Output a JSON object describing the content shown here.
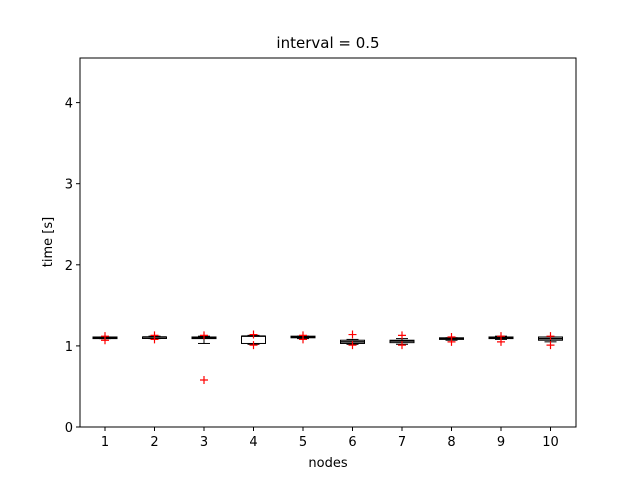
{
  "chart_data": {
    "type": "box",
    "title": "interval = 0.5",
    "xlabel": "nodes",
    "ylabel": "time [s]",
    "categories": [
      "1",
      "2",
      "3",
      "4",
      "5",
      "6",
      "7",
      "8",
      "9",
      "10"
    ],
    "yticks": [
      "0",
      "1",
      "2",
      "3",
      "4"
    ],
    "ylim": [
      0,
      4.55
    ],
    "grid": false,
    "colors": {
      "box": "#000000",
      "median": "#000000",
      "outlier": "#ff0000"
    },
    "series": [
      {
        "category": "1",
        "whisker_low": 1.09,
        "q1": 1.09,
        "median": 1.1,
        "q3": 1.11,
        "whisker_high": 1.11,
        "outliers": [
          1.07,
          1.12
        ]
      },
      {
        "category": "2",
        "whisker_low": 1.09,
        "q1": 1.1,
        "median": 1.11,
        "q3": 1.11,
        "whisker_high": 1.12,
        "outliers": [
          1.08,
          1.13
        ]
      },
      {
        "category": "3",
        "whisker_low": 1.03,
        "q1": 1.09,
        "median": 1.1,
        "q3": 1.11,
        "whisker_high": 1.12,
        "outliers": [
          0.58,
          1.13
        ]
      },
      {
        "category": "4",
        "whisker_low": 1.02,
        "q1": 1.03,
        "median": 1.12,
        "q3": 1.12,
        "whisker_high": 1.13,
        "outliers": [
          1.01,
          1.14
        ]
      },
      {
        "category": "5",
        "whisker_low": 1.09,
        "q1": 1.1,
        "median": 1.11,
        "q3": 1.12,
        "whisker_high": 1.12,
        "outliers": [
          1.08,
          1.13
        ]
      },
      {
        "category": "6",
        "whisker_low": 1.02,
        "q1": 1.03,
        "median": 1.05,
        "q3": 1.07,
        "whisker_high": 1.08,
        "outliers": [
          1.01,
          1.14
        ]
      },
      {
        "category": "7",
        "whisker_low": 1.02,
        "q1": 1.04,
        "median": 1.06,
        "q3": 1.07,
        "whisker_high": 1.09,
        "outliers": [
          1.01,
          1.13
        ]
      },
      {
        "category": "8",
        "whisker_low": 1.07,
        "q1": 1.08,
        "median": 1.09,
        "q3": 1.1,
        "whisker_high": 1.1,
        "outliers": [
          1.05,
          1.11
        ]
      },
      {
        "category": "9",
        "whisker_low": 1.08,
        "q1": 1.09,
        "median": 1.1,
        "q3": 1.11,
        "whisker_high": 1.12,
        "outliers": [
          1.05,
          1.12
        ]
      },
      {
        "category": "10",
        "whisker_low": 1.05,
        "q1": 1.07,
        "median": 1.09,
        "q3": 1.11,
        "whisker_high": 1.11,
        "outliers": [
          1.01,
          1.12
        ]
      }
    ]
  }
}
